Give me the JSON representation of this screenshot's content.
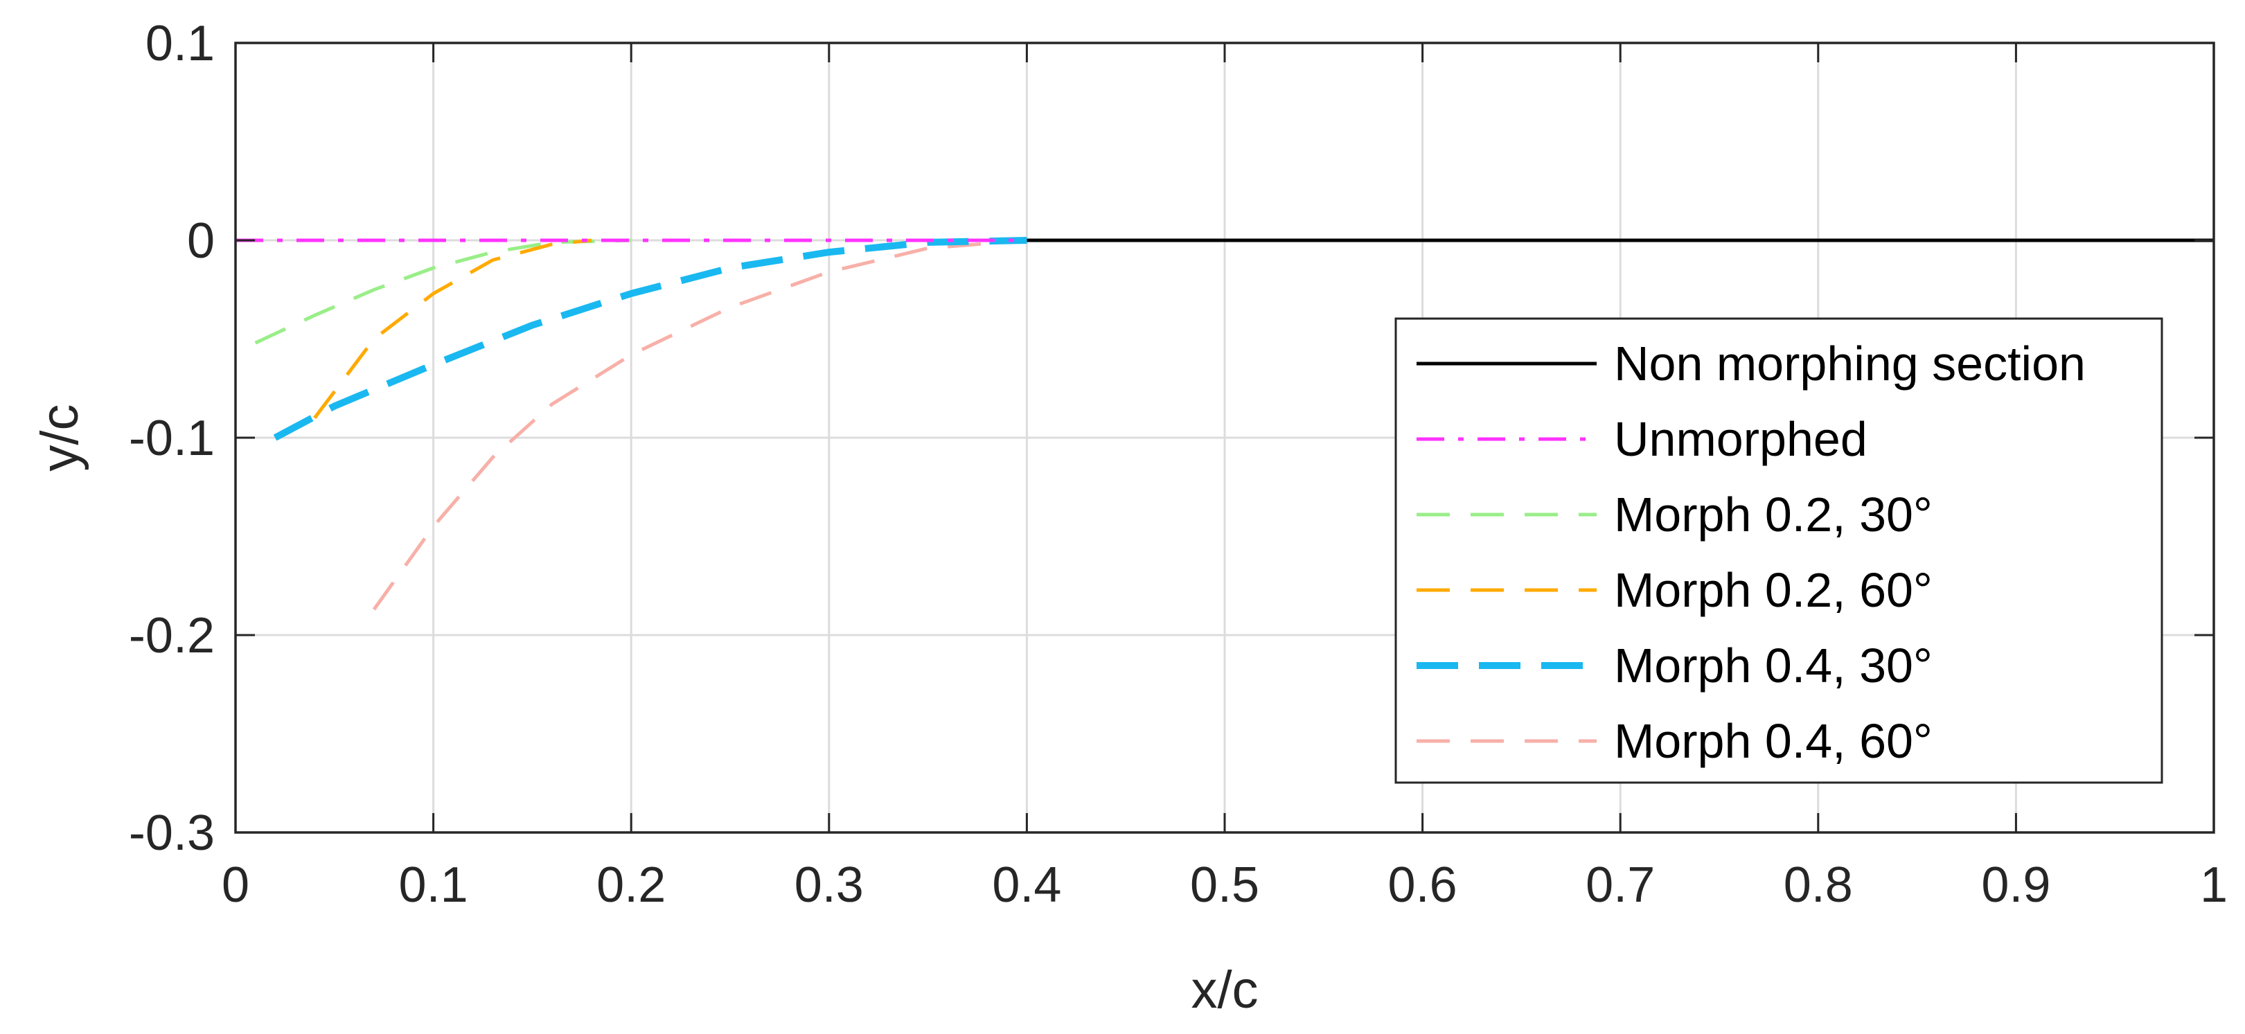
{
  "chart_data": {
    "type": "line",
    "title": "",
    "xlabel": "x/c",
    "ylabel": "y/c",
    "xlim": [
      0,
      1
    ],
    "ylim": [
      -0.3,
      0.1
    ],
    "xticks": [
      0,
      0.1,
      0.2,
      0.3,
      0.4,
      0.5,
      0.6,
      0.7,
      0.8,
      0.9,
      1
    ],
    "xtick_labels": [
      "0",
      "0.1",
      "0.2",
      "0.3",
      "0.4",
      "0.5",
      "0.6",
      "0.7",
      "0.8",
      "0.9",
      "1"
    ],
    "yticks": [
      0.1,
      0,
      -0.1,
      -0.2,
      -0.3
    ],
    "ytick_labels": [
      "0.1",
      "0",
      "-0.1",
      "-0.2",
      "-0.3"
    ],
    "grid": true,
    "legend_position": "bottom-right",
    "series": [
      {
        "name": "Non morphing section",
        "color": "#000000",
        "style": "solid",
        "x": [
          0.4,
          1.0
        ],
        "y": [
          0,
          0
        ]
      },
      {
        "name": "Unmorphed",
        "color": "#ff33ff",
        "style": "dashdot",
        "x": [
          0.0,
          0.4
        ],
        "y": [
          0,
          0
        ]
      },
      {
        "name": "Morph 0.2, 30°",
        "color": "#99ee88",
        "style": "dashed",
        "x": [
          0.01,
          0.04,
          0.07,
          0.1,
          0.13,
          0.16,
          0.2
        ],
        "y": [
          -0.052,
          -0.038,
          -0.025,
          -0.014,
          -0.006,
          -0.001,
          0
        ]
      },
      {
        "name": "Morph 0.2, 60°",
        "color": "#ffaa00",
        "style": "dashed",
        "x": [
          0.04,
          0.07,
          0.1,
          0.13,
          0.16,
          0.18
        ],
        "y": [
          -0.09,
          -0.05,
          -0.027,
          -0.01,
          -0.002,
          0
        ]
      },
      {
        "name": "Morph 0.4, 30°",
        "color": "#1ab8f0",
        "style": "dashed-thick",
        "x": [
          0.02,
          0.05,
          0.1,
          0.15,
          0.2,
          0.25,
          0.3,
          0.35,
          0.4
        ],
        "y": [
          -0.1,
          -0.084,
          -0.063,
          -0.043,
          -0.027,
          -0.014,
          -0.006,
          -0.001,
          0
        ]
      },
      {
        "name": "Morph 0.4, 60°",
        "color": "#f7b0a8",
        "style": "dashed",
        "x": [
          0.07,
          0.1,
          0.13,
          0.16,
          0.2,
          0.25,
          0.3,
          0.35,
          0.4
        ],
        "y": [
          -0.187,
          -0.145,
          -0.11,
          -0.083,
          -0.058,
          -0.034,
          -0.016,
          -0.004,
          0
        ]
      }
    ]
  }
}
